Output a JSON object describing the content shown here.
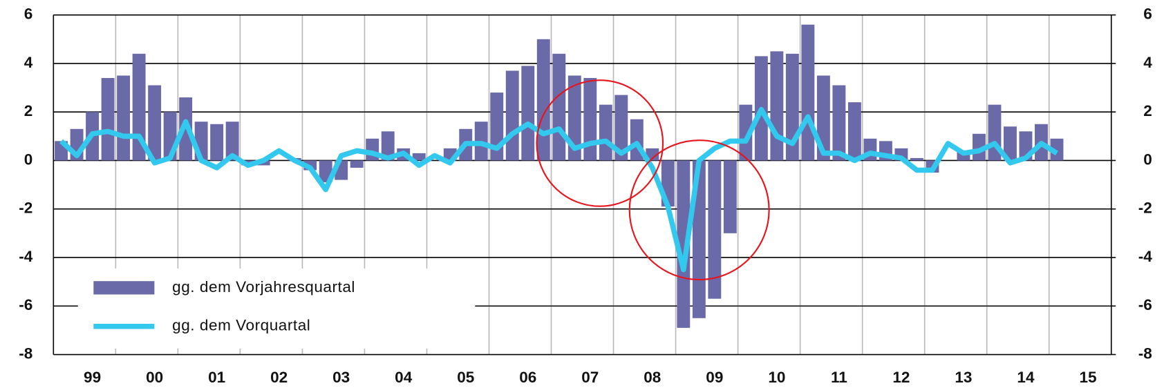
{
  "chart_data": {
    "type": "bar_line",
    "categories": [
      null,
      null,
      "99",
      null,
      null,
      null,
      "00",
      null,
      null,
      null,
      "01",
      null,
      null,
      null,
      "02",
      null,
      null,
      null,
      "03",
      null,
      null,
      null,
      "04",
      null,
      null,
      null,
      "05",
      null,
      null,
      null,
      "06",
      null,
      null,
      null,
      "07",
      null,
      null,
      null,
      "08",
      null,
      null,
      null,
      "09",
      null,
      null,
      null,
      "10",
      null,
      null,
      null,
      "11",
      null,
      null,
      null,
      "12",
      null,
      null,
      null,
      "13",
      null,
      null,
      null,
      "14",
      null,
      null,
      null,
      "15",
      null
    ],
    "series": [
      {
        "name": "gg. dem Vorjahresquartal",
        "kind": "bar",
        "color": "#6a6aa8",
        "values": [
          0.8,
          1.3,
          2.0,
          3.4,
          3.5,
          4.4,
          3.1,
          2.0,
          2.6,
          1.6,
          1.5,
          1.6,
          -0.2,
          -0.2,
          0.0,
          0.1,
          -0.4,
          -0.9,
          -0.8,
          -0.3,
          0.9,
          1.2,
          0.5,
          0.3,
          0.0,
          0.5,
          1.3,
          1.6,
          2.8,
          3.7,
          3.9,
          5.0,
          4.4,
          3.5,
          3.4,
          2.3,
          2.7,
          1.7,
          0.5,
          -1.9,
          -6.9,
          -6.5,
          -5.7,
          -3.0,
          2.3,
          4.3,
          4.5,
          4.4,
          5.6,
          3.5,
          3.1,
          2.4,
          0.9,
          0.8,
          0.5,
          0.1,
          -0.5,
          0.0,
          0.4,
          1.1,
          2.3,
          1.4,
          1.2,
          1.5,
          0.9,
          null,
          null,
          null
        ]
      },
      {
        "name": "gg. dem Vorquartal",
        "kind": "line",
        "color": "#33c8ee",
        "values": [
          0.8,
          0.2,
          1.1,
          1.2,
          1.0,
          1.0,
          -0.1,
          0.1,
          1.6,
          0.0,
          -0.3,
          0.2,
          -0.2,
          0.0,
          0.4,
          0.0,
          -0.3,
          -1.2,
          0.2,
          0.4,
          0.3,
          0.1,
          0.3,
          -0.2,
          0.2,
          -0.1,
          0.7,
          0.7,
          0.5,
          1.1,
          1.5,
          1.1,
          1.3,
          0.5,
          0.7,
          0.8,
          0.3,
          0.7,
          -0.3,
          -1.9,
          -4.5,
          0.0,
          0.5,
          0.8,
          0.8,
          2.1,
          1.0,
          0.7,
          1.8,
          0.3,
          0.3,
          0.0,
          0.3,
          0.2,
          0.1,
          -0.4,
          -0.4,
          0.7,
          0.3,
          0.4,
          0.7,
          -0.1,
          0.1,
          0.7,
          0.3,
          null,
          null,
          null
        ]
      }
    ],
    "ylim": [
      -8,
      6
    ],
    "yticks": [
      -8,
      -6,
      -4,
      -2,
      0,
      2,
      4,
      6
    ],
    "y2lim": [
      -8,
      6
    ],
    "y2ticks": [
      -8,
      -6,
      -4,
      -2,
      0,
      2,
      4,
      6
    ],
    "grid": true,
    "legend": "lower left"
  }
}
